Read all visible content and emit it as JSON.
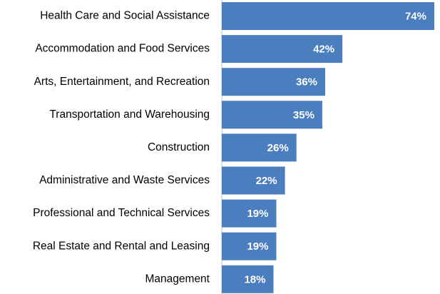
{
  "chart_data": {
    "type": "bar",
    "orientation": "horizontal",
    "categories": [
      "Health Care and Social Assistance",
      "Accommodation and Food Services",
      "Arts, Entertainment, and Recreation",
      "Transportation and Warehousing",
      "Construction",
      "Administrative and Waste Services",
      "Professional and Technical Services",
      "Real Estate and Rental and Leasing",
      "Management"
    ],
    "values": [
      74,
      42,
      36,
      35,
      26,
      22,
      19,
      19,
      18
    ],
    "value_labels": [
      "74%",
      "42%",
      "36%",
      "35%",
      "26%",
      "22%",
      "19%",
      "19%",
      "18%"
    ],
    "color": "#4a7ebf"
  }
}
